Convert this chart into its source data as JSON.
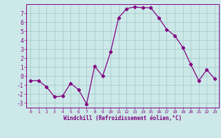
{
  "x": [
    0,
    1,
    2,
    3,
    4,
    5,
    6,
    7,
    8,
    9,
    10,
    11,
    12,
    13,
    14,
    15,
    16,
    17,
    18,
    19,
    20,
    21,
    22,
    23
  ],
  "y": [
    -0.5,
    -0.5,
    -1.2,
    -2.3,
    -2.2,
    -0.8,
    -1.5,
    -3.1,
    1.1,
    0.0,
    2.7,
    6.5,
    7.5,
    7.7,
    7.6,
    7.6,
    6.5,
    5.2,
    4.5,
    3.2,
    1.3,
    -0.5,
    0.7,
    -0.3
  ],
  "line_color": "#800080",
  "marker": "D",
  "markersize": 2.2,
  "bg_color": "#cce8e8",
  "grid_color": "#a8cccc",
  "xlabel": "Windchill (Refroidissement éolien,°C)",
  "xlim": [
    -0.5,
    23.5
  ],
  "ylim": [
    -3.5,
    8.0
  ],
  "xticks": [
    0,
    1,
    2,
    3,
    4,
    5,
    6,
    7,
    8,
    9,
    10,
    11,
    12,
    13,
    14,
    15,
    16,
    17,
    18,
    19,
    20,
    21,
    22,
    23
  ],
  "yticks": [
    -3,
    -2,
    -1,
    0,
    1,
    2,
    3,
    4,
    5,
    6,
    7
  ],
  "label_color": "#800080",
  "spine_color": "#800080",
  "bottom_bar_color": "#6600aa"
}
